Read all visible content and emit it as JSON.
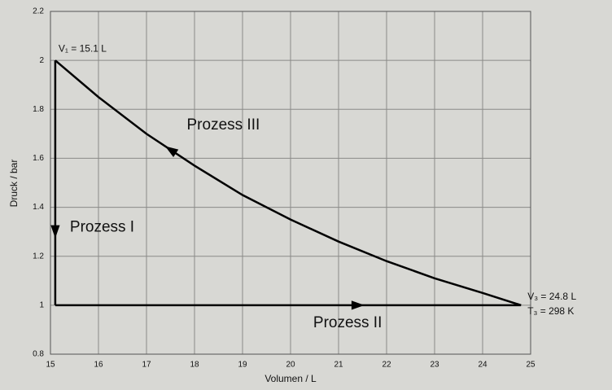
{
  "chart_data": {
    "type": "line",
    "xlabel": "Volumen / L",
    "ylabel": "Druck / bar",
    "xlim": [
      15,
      25
    ],
    "xticks": [
      15,
      16,
      17,
      18,
      19,
      20,
      21,
      22,
      23,
      24,
      25
    ],
    "ylim": [
      0.8,
      2.2
    ],
    "yticks": [
      0.8,
      1,
      1.2,
      1.4,
      1.6,
      1.8,
      2,
      2.2
    ],
    "grid": true,
    "series": [
      {
        "name": "Prozess I",
        "color": "#000000",
        "x": [
          15.1,
          15.1
        ],
        "values": [
          2,
          1
        ]
      },
      {
        "name": "Prozess II",
        "color": "#000000",
        "x": [
          15.1,
          24.8
        ],
        "values": [
          1,
          1
        ]
      },
      {
        "name": "Prozess III",
        "color": "#000000",
        "x": [
          24.8,
          24,
          23,
          22,
          21,
          20,
          19,
          18,
          17,
          16,
          15.1
        ],
        "values": [
          1,
          1.05,
          1.11,
          1.18,
          1.26,
          1.35,
          1.45,
          1.57,
          1.7,
          1.85,
          2
        ]
      }
    ],
    "annotations": [
      "V₁ = 15.1 L",
      "V₃ = 24.8 L",
      "T₃ = 298 K"
    ]
  }
}
